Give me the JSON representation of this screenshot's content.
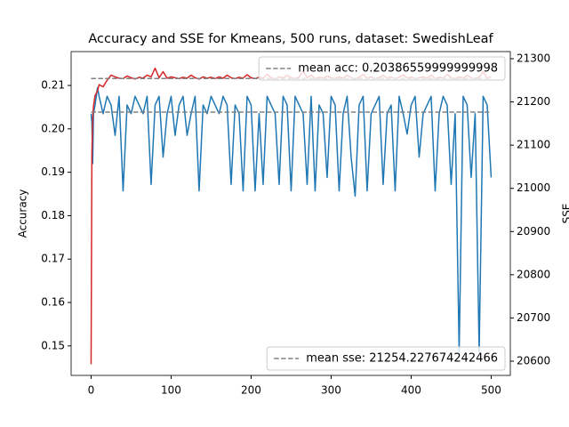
{
  "chart_data": {
    "type": "line",
    "title": "Accuracy and SSE for Kmeans, 500 runs, dataset: SwedishLeaf",
    "y_label": "Accuracy",
    "y2_label": "SSE",
    "x": [
      0,
      1,
      2,
      3,
      5,
      8,
      10,
      15,
      20,
      25,
      30,
      35,
      40,
      45,
      50,
      55,
      60,
      65,
      70,
      75,
      80,
      85,
      90,
      95,
      100,
      105,
      110,
      115,
      120,
      125,
      130,
      135,
      140,
      145,
      150,
      155,
      160,
      165,
      170,
      175,
      180,
      185,
      190,
      195,
      200,
      205,
      210,
      215,
      220,
      225,
      230,
      235,
      240,
      245,
      250,
      255,
      260,
      265,
      270,
      275,
      280,
      285,
      290,
      295,
      300,
      305,
      310,
      315,
      320,
      325,
      330,
      335,
      340,
      345,
      350,
      355,
      360,
      365,
      370,
      375,
      380,
      385,
      390,
      395,
      400,
      405,
      410,
      415,
      420,
      425,
      430,
      435,
      440,
      445,
      450,
      455,
      460,
      465,
      470,
      475,
      480,
      485,
      490,
      495,
      500
    ],
    "series": [
      {
        "name": "Accuracy",
        "color": "#1f77b4",
        "axis": "y",
        "values": [
          0.2035,
          0.2015,
          0.192,
          0.2035,
          0.2055,
          0.2095,
          0.2075,
          0.2035,
          0.2075,
          0.2055,
          0.1985,
          0.2075,
          0.1857,
          0.2055,
          0.2035,
          0.2075,
          0.2055,
          0.2035,
          0.2075,
          0.1872,
          0.2055,
          0.2075,
          0.1935,
          0.2035,
          0.2075,
          0.1985,
          0.2055,
          0.2075,
          0.1985,
          0.2035,
          0.2075,
          0.1857,
          0.2055,
          0.2035,
          0.2075,
          0.2055,
          0.2035,
          0.2075,
          0.2055,
          0.1872,
          0.2055,
          0.2035,
          0.1857,
          0.2075,
          0.2055,
          0.1857,
          0.2035,
          0.1872,
          0.2075,
          0.2055,
          0.2035,
          0.1872,
          0.2075,
          0.2055,
          0.1857,
          0.2075,
          0.2055,
          0.2035,
          0.1872,
          0.2075,
          0.1857,
          0.2055,
          0.2035,
          0.1888,
          0.2075,
          0.2055,
          0.1857,
          0.2035,
          0.2075,
          0.1935,
          0.1845,
          0.2055,
          0.2075,
          0.1857,
          0.2035,
          0.2055,
          0.2075,
          0.1872,
          0.2035,
          0.2055,
          0.1857,
          0.2075,
          0.2035,
          0.1988,
          0.2055,
          0.2075,
          0.1935,
          0.2035,
          0.2055,
          0.2075,
          0.1857,
          0.2035,
          0.2075,
          0.2055,
          0.1872,
          0.2035,
          0.1486,
          0.2075,
          0.2055,
          0.1888,
          0.2035,
          0.1486,
          0.2075,
          0.2055,
          0.1888
        ]
      },
      {
        "name": "SSE",
        "color": "#d62728",
        "axis": "y2",
        "values": [
          20593,
          21080,
          21160,
          21190,
          21215,
          21225,
          21240,
          21235,
          21250,
          21262,
          21258,
          21255,
          21254,
          21260,
          21256,
          21253,
          21257,
          21255,
          21262,
          21258,
          21278,
          21256,
          21270,
          21255,
          21258,
          21256,
          21254,
          21257,
          21255,
          21262,
          21256,
          21253,
          21258,
          21255,
          21257,
          21254,
          21258,
          21255,
          21262,
          21256,
          21254,
          21257,
          21255,
          21263,
          21256,
          21254,
          21257,
          21255,
          21264,
          21256,
          21253,
          21258,
          21255,
          21262,
          21256,
          21254,
          21258,
          21272,
          21256,
          21262,
          21254,
          21257,
          21255,
          21260,
          21256,
          21254,
          21258,
          21255,
          21262,
          21256,
          21253,
          21257,
          21264,
          21255,
          21258,
          21254,
          21256,
          21262,
          21255,
          21258,
          21254,
          21257,
          21263,
          21255,
          21258,
          21254,
          21256,
          21258,
          21255,
          21262,
          21254,
          21257,
          21255,
          21264,
          21256,
          21254,
          21258,
          21255,
          21262,
          21256,
          21254,
          21257,
          21270,
          21255,
          21258
        ]
      }
    ],
    "hlines": [
      {
        "name": "mean acc: 0.20386559999999998",
        "value": 0.20386559999999998,
        "axis": "y",
        "color": "#808080",
        "legend_loc": "upper right"
      },
      {
        "name": "mean sse: 21254.227674242466",
        "value": 21254.227674242466,
        "axis": "y2",
        "color": "#808080",
        "legend_loc": "lower right"
      }
    ],
    "xlim": [
      -24.95,
      523.95
    ],
    "xticks": [
      0,
      100,
      200,
      300,
      400,
      500
    ],
    "ylim": [
      0.1432,
      0.2178
    ],
    "yticks": [
      0.15,
      0.16,
      0.17,
      0.18,
      0.19,
      {
        "value": 0.2,
        "label": "0.20"
      },
      0.21
    ],
    "y2lim": [
      20567,
      21316.5
    ],
    "y2ticks": [
      20600,
      20700,
      20800,
      20900,
      21000,
      21100,
      21200,
      21300
    ]
  }
}
